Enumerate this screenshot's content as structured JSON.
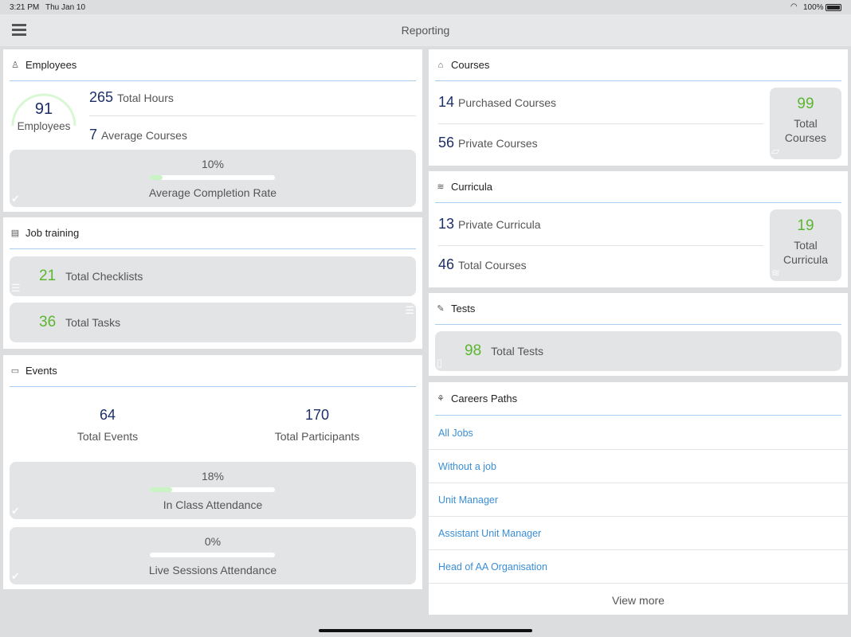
{
  "status": {
    "time": "3:21 PM",
    "date": "Thu Jan 10",
    "battery": "100%"
  },
  "header": {
    "title": "Reporting"
  },
  "employees": {
    "title": "Employees",
    "count": "91",
    "count_label": "Employees",
    "total_hours": "265",
    "total_hours_label": "Total Hours",
    "avg_courses": "7",
    "avg_courses_label": "Average Courses",
    "completion_pct": "10%",
    "completion_value": 10,
    "completion_label": "Average Completion Rate"
  },
  "job_training": {
    "title": "Job training",
    "checklists": "21",
    "checklists_label": "Total Checklists",
    "tasks": "36",
    "tasks_label": "Total Tasks"
  },
  "events": {
    "title": "Events",
    "total": "64",
    "total_label": "Total Events",
    "participants": "170",
    "participants_label": "Total Participants",
    "in_class_pct": "18%",
    "in_class_value": 18,
    "in_class_label": "In Class Attendance",
    "live_pct": "0%",
    "live_value": 0,
    "live_label": "Live Sessions Attendance"
  },
  "courses": {
    "title": "Courses",
    "purchased": "14",
    "purchased_label": "Purchased Courses",
    "private": "56",
    "private_label": "Private Courses",
    "total": "99",
    "total_label": "Total Courses"
  },
  "curricula": {
    "title": "Curricula",
    "private": "13",
    "private_label": "Private Curricula",
    "courses": "46",
    "courses_label": "Total Courses",
    "total": "19",
    "total_label": "Total Curricula"
  },
  "tests": {
    "title": "Tests",
    "total": "98",
    "total_label": "Total Tests"
  },
  "careers": {
    "title": "Careers Paths",
    "items": [
      "All Jobs",
      "Without a job",
      "Unit Manager",
      "Assistant Unit Manager",
      "Head of AA Organisation"
    ],
    "view_more": "View more"
  }
}
